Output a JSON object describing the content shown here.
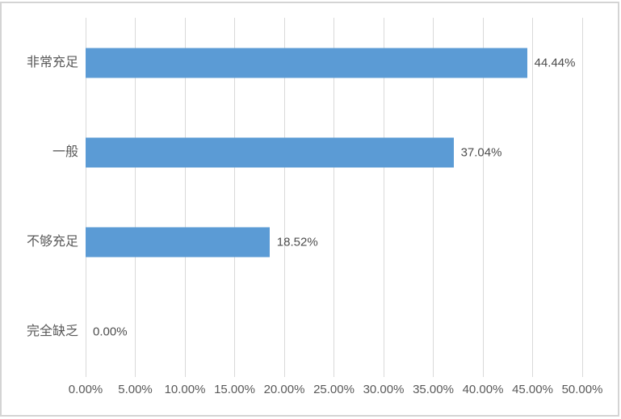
{
  "chart_data": {
    "type": "bar",
    "orientation": "horizontal",
    "title": "",
    "categories": [
      "非常充足",
      "一般",
      "不够充足",
      "完全缺乏"
    ],
    "values": [
      44.44,
      37.04,
      18.52,
      0.0
    ],
    "data_labels": [
      "44.44%",
      "37.04%",
      "18.52%",
      "0.00%"
    ],
    "x_ticks": [
      "0.00%",
      "5.00%",
      "10.00%",
      "15.00%",
      "20.00%",
      "25.00%",
      "30.00%",
      "35.00%",
      "40.00%",
      "45.00%",
      "50.00%"
    ],
    "xlim": [
      0,
      50
    ],
    "grid": true,
    "legend": false,
    "bar_color": "#5b9bd5",
    "gridline_color": "#d9d9d9",
    "axis_label_color": "#595959",
    "value_label_color": "#4d4d4d",
    "frame_border_color": "#d4d4d4"
  }
}
